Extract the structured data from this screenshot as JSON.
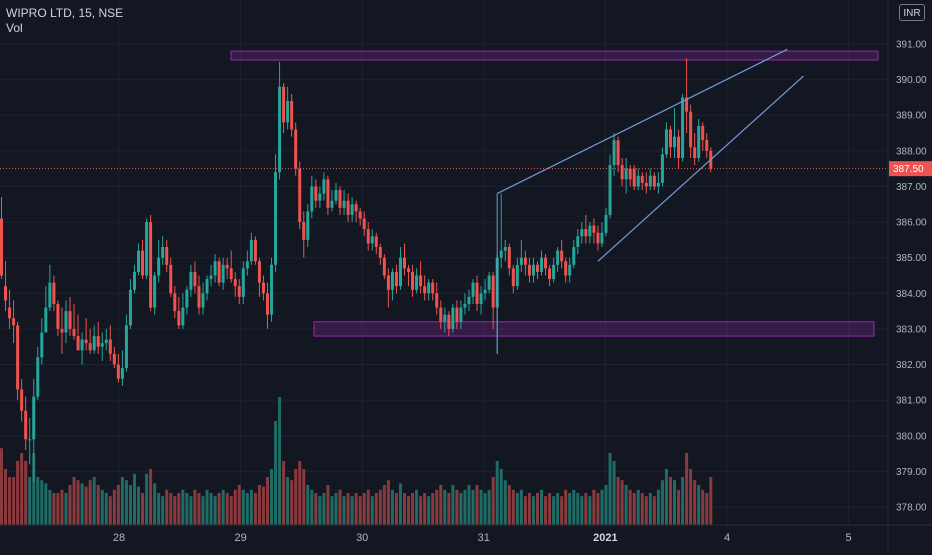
{
  "header": {
    "title": "WIPRO LTD, 15, NSE",
    "volume_label": "Vol",
    "currency": "INR"
  },
  "colors": {
    "background": "#131722",
    "grid": "#1e2230",
    "up": "#26a69a",
    "down": "#ef5350",
    "up_volume": "#1f6b66",
    "down_volume": "#8a3a3d",
    "zone": "#9c27b0",
    "trendline": "#6f9cd6",
    "last_price": "#ef5350"
  },
  "chart_data": {
    "type": "candlestick",
    "instrument": "WIPRO LTD",
    "interval": "15",
    "exchange": "NSE",
    "y_ticks": [
      378.0,
      379.0,
      380.0,
      381.0,
      382.0,
      383.0,
      384.0,
      385.0,
      386.0,
      387.0,
      388.0,
      389.0,
      390.0,
      391.0
    ],
    "y_tick_labels": [
      "378.00",
      "379.00",
      "380.00",
      "381.00",
      "382.00",
      "383.00",
      "384.00",
      "385.00",
      "386.00",
      "387.00",
      "388.00",
      "389.00",
      "390.00",
      "391.00"
    ],
    "ylim": [
      377.6,
      392.3
    ],
    "x_ticks": [
      {
        "label": "28",
        "day": 28,
        "bold": false
      },
      {
        "label": "29",
        "day": 29,
        "bold": false
      },
      {
        "label": "30",
        "day": 30,
        "bold": false
      },
      {
        "label": "31",
        "day": 31,
        "bold": false
      },
      {
        "label": "2021",
        "day": 32,
        "bold": true
      },
      {
        "label": "4",
        "day": 33,
        "bold": false
      },
      {
        "label": "5",
        "day": 34,
        "bold": false
      }
    ],
    "last_price": 387.5,
    "last_price_label": "387.50",
    "candles": [
      [
        1,
        386.1,
        384.5,
        386.7,
        384.4,
        48
      ],
      [
        2,
        384.2,
        383.8,
        384.9,
        383.5,
        35
      ],
      [
        3,
        383.6,
        383.3,
        384.1,
        383.0,
        30
      ],
      [
        4,
        383.3,
        383.1,
        383.8,
        382.6,
        30
      ],
      [
        5,
        383.1,
        381.3,
        383.2,
        381.0,
        40
      ],
      [
        6,
        381.3,
        380.7,
        381.6,
        380.4,
        45
      ],
      [
        7,
        380.7,
        379.9,
        381.1,
        379.6,
        40
      ],
      [
        8,
        379.9,
        379.9,
        380.5,
        379.2,
        30
      ],
      [
        9,
        379.9,
        381.1,
        381.6,
        378.7,
        45
      ],
      [
        10,
        381.1,
        382.2,
        382.5,
        381.0,
        30
      ],
      [
        11,
        382.2,
        382.9,
        383.3,
        382.0,
        28
      ],
      [
        12,
        382.9,
        383.6,
        384.2,
        382.9,
        26
      ],
      [
        13,
        383.6,
        384.3,
        384.8,
        383.5,
        22
      ],
      [
        14,
        384.3,
        383.7,
        384.5,
        383.5,
        20
      ],
      [
        15,
        383.7,
        383.0,
        383.8,
        382.8,
        20
      ],
      [
        16,
        383.0,
        382.9,
        383.6,
        382.3,
        22
      ],
      [
        17,
        382.9,
        383.5,
        383.8,
        382.6,
        20
      ],
      [
        18,
        383.5,
        383.0,
        383.9,
        382.8,
        25
      ],
      [
        19,
        383.0,
        382.8,
        383.7,
        382.7,
        30
      ],
      [
        20,
        382.8,
        382.4,
        383.4,
        382.4,
        28
      ],
      [
        21,
        382.4,
        382.7,
        382.9,
        382.0,
        26
      ],
      [
        22,
        382.7,
        382.6,
        383.3,
        382.4,
        24
      ],
      [
        23,
        382.6,
        382.4,
        383.0,
        382.3,
        28
      ],
      [
        24,
        382.4,
        382.8,
        383.1,
        382.3,
        30
      ],
      [
        25,
        382.8,
        382.5,
        383.2,
        382.3,
        25
      ],
      [
        26,
        382.5,
        382.6,
        382.9,
        382.1,
        22
      ],
      [
        27,
        382.6,
        382.7,
        383.0,
        382.4,
        20
      ],
      [
        28,
        382.7,
        382.3,
        383.1,
        382.1,
        18
      ],
      [
        29,
        382.3,
        382.0,
        382.5,
        381.9,
        22
      ],
      [
        30,
        382.0,
        381.6,
        382.3,
        381.5,
        25
      ],
      [
        31,
        381.6,
        381.9,
        382.4,
        381.4,
        30
      ],
      [
        32,
        381.9,
        383.1,
        383.4,
        381.8,
        28
      ],
      [
        33,
        383.1,
        384.1,
        384.4,
        383.0,
        25
      ],
      [
        34,
        384.1,
        384.6,
        384.8,
        384.0,
        32
      ],
      [
        35,
        384.6,
        385.2,
        385.4,
        384.5,
        24
      ],
      [
        36,
        385.2,
        384.5,
        385.5,
        384.4,
        20
      ],
      [
        37,
        384.5,
        386.0,
        386.1,
        384.4,
        32
      ],
      [
        38,
        386.0,
        383.6,
        386.2,
        383.5,
        35
      ],
      [
        39,
        383.6,
        384.5,
        384.6,
        383.4,
        26
      ],
      [
        40,
        384.5,
        385.0,
        385.5,
        384.3,
        20
      ],
      [
        41,
        385.0,
        385.3,
        385.6,
        384.8,
        18
      ],
      [
        42,
        385.3,
        384.8,
        385.5,
        384.6,
        22
      ],
      [
        43,
        384.8,
        384.0,
        385.0,
        383.9,
        20
      ],
      [
        44,
        384.0,
        383.5,
        384.2,
        383.3,
        18
      ],
      [
        45,
        383.5,
        383.1,
        383.9,
        383.0,
        20
      ],
      [
        46,
        383.1,
        383.6,
        384.0,
        383.0,
        22
      ],
      [
        47,
        383.6,
        384.1,
        384.2,
        383.4,
        20
      ],
      [
        48,
        384.1,
        384.6,
        384.8,
        383.9,
        18
      ],
      [
        49,
        384.6,
        384.2,
        384.9,
        384.0,
        22
      ],
      [
        50,
        384.2,
        383.6,
        384.5,
        383.4,
        20
      ],
      [
        51,
        383.6,
        384.0,
        384.3,
        383.4,
        18
      ],
      [
        52,
        384.0,
        384.4,
        384.5,
        383.8,
        22
      ],
      [
        53,
        384.4,
        384.5,
        384.8,
        384.2,
        20
      ],
      [
        54,
        384.5,
        384.9,
        385.1,
        384.3,
        18
      ],
      [
        55,
        384.9,
        384.3,
        385.0,
        384.2,
        20
      ],
      [
        56,
        384.3,
        384.8,
        385.0,
        384.1,
        22
      ],
      [
        57,
        384.8,
        384.7,
        385.0,
        384.4,
        20
      ],
      [
        58,
        384.7,
        384.4,
        385.2,
        384.3,
        18
      ],
      [
        59,
        384.4,
        384.2,
        384.6,
        383.9,
        22
      ],
      [
        60,
        384.2,
        383.9,
        384.4,
        383.7,
        25
      ],
      [
        61,
        383.9,
        384.7,
        384.9,
        383.7,
        22
      ],
      [
        62,
        384.7,
        384.9,
        385.2,
        384.5,
        20
      ],
      [
        63,
        384.9,
        385.5,
        385.7,
        384.8,
        22
      ],
      [
        64,
        385.5,
        384.9,
        385.6,
        384.8,
        20
      ],
      [
        65,
        384.9,
        384.3,
        385.0,
        383.9,
        25
      ],
      [
        66,
        384.3,
        384.0,
        384.5,
        383.8,
        24
      ],
      [
        67,
        384.0,
        383.4,
        384.3,
        383.0,
        30
      ],
      [
        68,
        383.4,
        384.8,
        385.0,
        383.2,
        35
      ],
      [
        69,
        384.8,
        387.4,
        387.9,
        384.6,
        65
      ],
      [
        70,
        387.4,
        389.8,
        390.5,
        387.2,
        80
      ],
      [
        71,
        389.8,
        388.8,
        389.9,
        388.5,
        40
      ],
      [
        72,
        388.8,
        389.4,
        389.8,
        388.6,
        30
      ],
      [
        73,
        389.4,
        388.6,
        389.6,
        388.4,
        28
      ],
      [
        74,
        388.6,
        387.5,
        388.8,
        387.3,
        35
      ],
      [
        75,
        387.5,
        386.0,
        387.7,
        385.8,
        40
      ],
      [
        76,
        386.0,
        385.5,
        386.3,
        385.0,
        35
      ],
      [
        77,
        385.5,
        386.3,
        386.5,
        385.3,
        25
      ],
      [
        78,
        386.3,
        387.0,
        387.3,
        386.1,
        22
      ],
      [
        79,
        387.0,
        386.6,
        387.2,
        386.4,
        20
      ],
      [
        80,
        386.6,
        386.8,
        387.0,
        386.4,
        18
      ],
      [
        81,
        386.8,
        387.2,
        387.4,
        386.6,
        20
      ],
      [
        82,
        387.2,
        386.4,
        387.3,
        386.2,
        25
      ],
      [
        83,
        386.4,
        386.6,
        386.9,
        386.3,
        18
      ],
      [
        84,
        386.6,
        386.9,
        387.1,
        386.5,
        20
      ],
      [
        85,
        386.9,
        386.4,
        387.0,
        386.2,
        22
      ],
      [
        86,
        386.4,
        386.6,
        386.9,
        386.2,
        18
      ],
      [
        87,
        386.6,
        386.2,
        386.8,
        386.0,
        20
      ],
      [
        88,
        386.2,
        386.5,
        386.7,
        386.0,
        18
      ],
      [
        89,
        386.5,
        386.3,
        386.6,
        386.0,
        20
      ],
      [
        90,
        386.3,
        386.1,
        386.4,
        385.9,
        18
      ],
      [
        91,
        386.1,
        385.8,
        386.3,
        385.6,
        20
      ],
      [
        92,
        385.8,
        385.4,
        386.0,
        385.2,
        22
      ],
      [
        93,
        385.4,
        385.6,
        385.8,
        385.2,
        18
      ],
      [
        94,
        385.6,
        385.3,
        385.7,
        385.1,
        20
      ],
      [
        95,
        385.3,
        385.0,
        385.4,
        384.8,
        22
      ],
      [
        96,
        385.0,
        384.5,
        385.1,
        384.4,
        25
      ],
      [
        97,
        384.5,
        384.1,
        384.7,
        383.6,
        28
      ],
      [
        98,
        384.1,
        384.6,
        384.7,
        383.8,
        22
      ],
      [
        99,
        384.6,
        384.2,
        384.8,
        384.0,
        20
      ],
      [
        100,
        384.2,
        385.0,
        385.3,
        384.1,
        26
      ],
      [
        101,
        385.0,
        384.7,
        385.4,
        384.5,
        20
      ],
      [
        102,
        384.7,
        384.6,
        384.8,
        384.2,
        18
      ],
      [
        103,
        384.6,
        384.1,
        384.8,
        383.9,
        20
      ],
      [
        104,
        384.1,
        384.5,
        384.7,
        384.0,
        22
      ],
      [
        105,
        384.5,
        384.2,
        384.9,
        384.0,
        18
      ],
      [
        106,
        384.2,
        384.0,
        384.5,
        383.8,
        20
      ],
      [
        107,
        384.0,
        384.3,
        384.4,
        383.8,
        18
      ],
      [
        108,
        384.3,
        384.0,
        384.4,
        383.8,
        20
      ],
      [
        109,
        384.0,
        383.6,
        384.3,
        383.4,
        22
      ],
      [
        110,
        383.6,
        383.2,
        383.8,
        383.0,
        25
      ],
      [
        111,
        383.2,
        383.4,
        383.6,
        382.9,
        22
      ],
      [
        112,
        383.4,
        383.0,
        383.5,
        382.8,
        20
      ],
      [
        113,
        383.0,
        383.6,
        383.7,
        382.9,
        25
      ],
      [
        114,
        383.6,
        383.2,
        383.8,
        383.0,
        22
      ],
      [
        115,
        383.2,
        383.6,
        383.8,
        383.0,
        20
      ],
      [
        116,
        383.6,
        383.7,
        384.0,
        383.4,
        22
      ],
      [
        117,
        383.7,
        383.9,
        384.1,
        383.5,
        25
      ],
      [
        118,
        383.9,
        384.3,
        384.4,
        383.7,
        22
      ],
      [
        119,
        384.3,
        383.7,
        384.5,
        383.5,
        25
      ],
      [
        120,
        383.7,
        384.0,
        384.2,
        383.4,
        22
      ],
      [
        121,
        384.0,
        384.1,
        384.4,
        383.8,
        20
      ],
      [
        122,
        384.1,
        384.5,
        384.6,
        384.0,
        22
      ],
      [
        123,
        384.5,
        383.6,
        384.6,
        383.0,
        30
      ],
      [
        124,
        383.6,
        385.0,
        385.1,
        382.3,
        40
      ],
      [
        125,
        385.0,
        385.2,
        386.8,
        384.7,
        35
      ],
      [
        126,
        385.2,
        385.3,
        385.5,
        384.9,
        28
      ],
      [
        127,
        385.3,
        384.7,
        385.4,
        384.5,
        25
      ],
      [
        128,
        384.7,
        384.2,
        384.8,
        384.0,
        22
      ],
      [
        129,
        384.2,
        384.8,
        385.0,
        384.1,
        20
      ],
      [
        130,
        384.8,
        385.0,
        385.5,
        384.6,
        22
      ],
      [
        131,
        385.0,
        384.8,
        385.2,
        384.5,
        18
      ],
      [
        132,
        384.8,
        384.5,
        385.0,
        384.3,
        20
      ],
      [
        133,
        384.5,
        384.8,
        385.0,
        384.3,
        18
      ],
      [
        134,
        384.8,
        384.6,
        384.9,
        384.4,
        20
      ],
      [
        135,
        384.6,
        385.0,
        385.2,
        384.5,
        22
      ],
      [
        136,
        385.0,
        384.7,
        385.1,
        384.5,
        18
      ],
      [
        137,
        384.7,
        384.4,
        384.8,
        384.2,
        20
      ],
      [
        138,
        384.4,
        384.8,
        385.0,
        384.3,
        18
      ],
      [
        139,
        384.8,
        385.2,
        385.3,
        384.6,
        20
      ],
      [
        140,
        385.2,
        384.9,
        385.5,
        384.7,
        18
      ],
      [
        141,
        384.9,
        384.5,
        385.0,
        384.3,
        22
      ],
      [
        142,
        384.5,
        384.8,
        385.0,
        384.3,
        20
      ],
      [
        143,
        384.8,
        385.3,
        385.5,
        384.7,
        22
      ],
      [
        144,
        385.3,
        385.6,
        385.8,
        385.1,
        20
      ],
      [
        145,
        385.6,
        385.8,
        386.0,
        385.4,
        18
      ],
      [
        146,
        385.8,
        385.6,
        386.2,
        385.4,
        20
      ],
      [
        147,
        385.6,
        385.9,
        386.0,
        385.4,
        18
      ],
      [
        148,
        385.9,
        385.7,
        386.1,
        385.4,
        22
      ],
      [
        149,
        385.7,
        385.4,
        385.9,
        385.2,
        20
      ],
      [
        150,
        385.4,
        385.7,
        386.0,
        385.3,
        22
      ],
      [
        151,
        385.7,
        386.2,
        386.4,
        385.6,
        25
      ],
      [
        152,
        386.2,
        387.6,
        387.9,
        386.1,
        45
      ],
      [
        153,
        387.6,
        388.3,
        388.5,
        387.3,
        40
      ],
      [
        154,
        388.3,
        387.6,
        388.4,
        387.4,
        30
      ],
      [
        155,
        387.6,
        387.2,
        387.8,
        387.0,
        28
      ],
      [
        156,
        387.2,
        387.5,
        387.8,
        386.8,
        25
      ],
      [
        157,
        387.5,
        387.2,
        387.6,
        387.0,
        22
      ],
      [
        158,
        387.5,
        387.0,
        387.6,
        386.9,
        20
      ],
      [
        159,
        387.0,
        387.3,
        387.5,
        386.9,
        22
      ],
      [
        160,
        387.3,
        387.1,
        387.4,
        386.9,
        20
      ],
      [
        161,
        387.1,
        387.0,
        387.4,
        386.8,
        18
      ],
      [
        162,
        387.0,
        387.3,
        387.5,
        386.9,
        20
      ],
      [
        163,
        387.3,
        387.0,
        387.4,
        386.9,
        18
      ],
      [
        164,
        387.0,
        387.1,
        387.4,
        386.8,
        22
      ],
      [
        165,
        387.1,
        387.9,
        388.1,
        387.0,
        28
      ],
      [
        166,
        387.9,
        388.6,
        388.8,
        387.8,
        35
      ],
      [
        167,
        388.6,
        388.1,
        388.7,
        387.8,
        30
      ],
      [
        168,
        388.1,
        388.4,
        389.2,
        387.8,
        28
      ],
      [
        169,
        388.4,
        387.8,
        388.6,
        387.5,
        22
      ],
      [
        170,
        387.8,
        389.5,
        389.6,
        387.7,
        30
      ],
      [
        171,
        389.5,
        389.1,
        390.6,
        388.5,
        45
      ],
      [
        172,
        389.1,
        388.1,
        389.3,
        387.8,
        35
      ],
      [
        173,
        388.1,
        387.8,
        388.5,
        387.6,
        28
      ],
      [
        174,
        387.8,
        388.7,
        388.9,
        387.7,
        25
      ],
      [
        175,
        388.7,
        388.3,
        388.8,
        388.0,
        22
      ],
      [
        176,
        388.3,
        388.0,
        388.5,
        387.8,
        20
      ],
      [
        177,
        388.0,
        387.5,
        388.1,
        387.4,
        30
      ]
    ],
    "support_zone": {
      "top": 383.2,
      "bottom": 382.8
    },
    "resistance_zone": {
      "top": 390.8,
      "bottom": 390.55
    },
    "trendlines": [
      {
        "name": "upper",
        "from": {
          "bar": 124,
          "price": 386.8
        },
        "to": {
          "bar": 196,
          "price": 390.85
        }
      },
      {
        "name": "lower",
        "from": {
          "bar": 149,
          "price": 384.9
        },
        "to": {
          "bar": 200,
          "price": 390.1
        }
      }
    ]
  }
}
